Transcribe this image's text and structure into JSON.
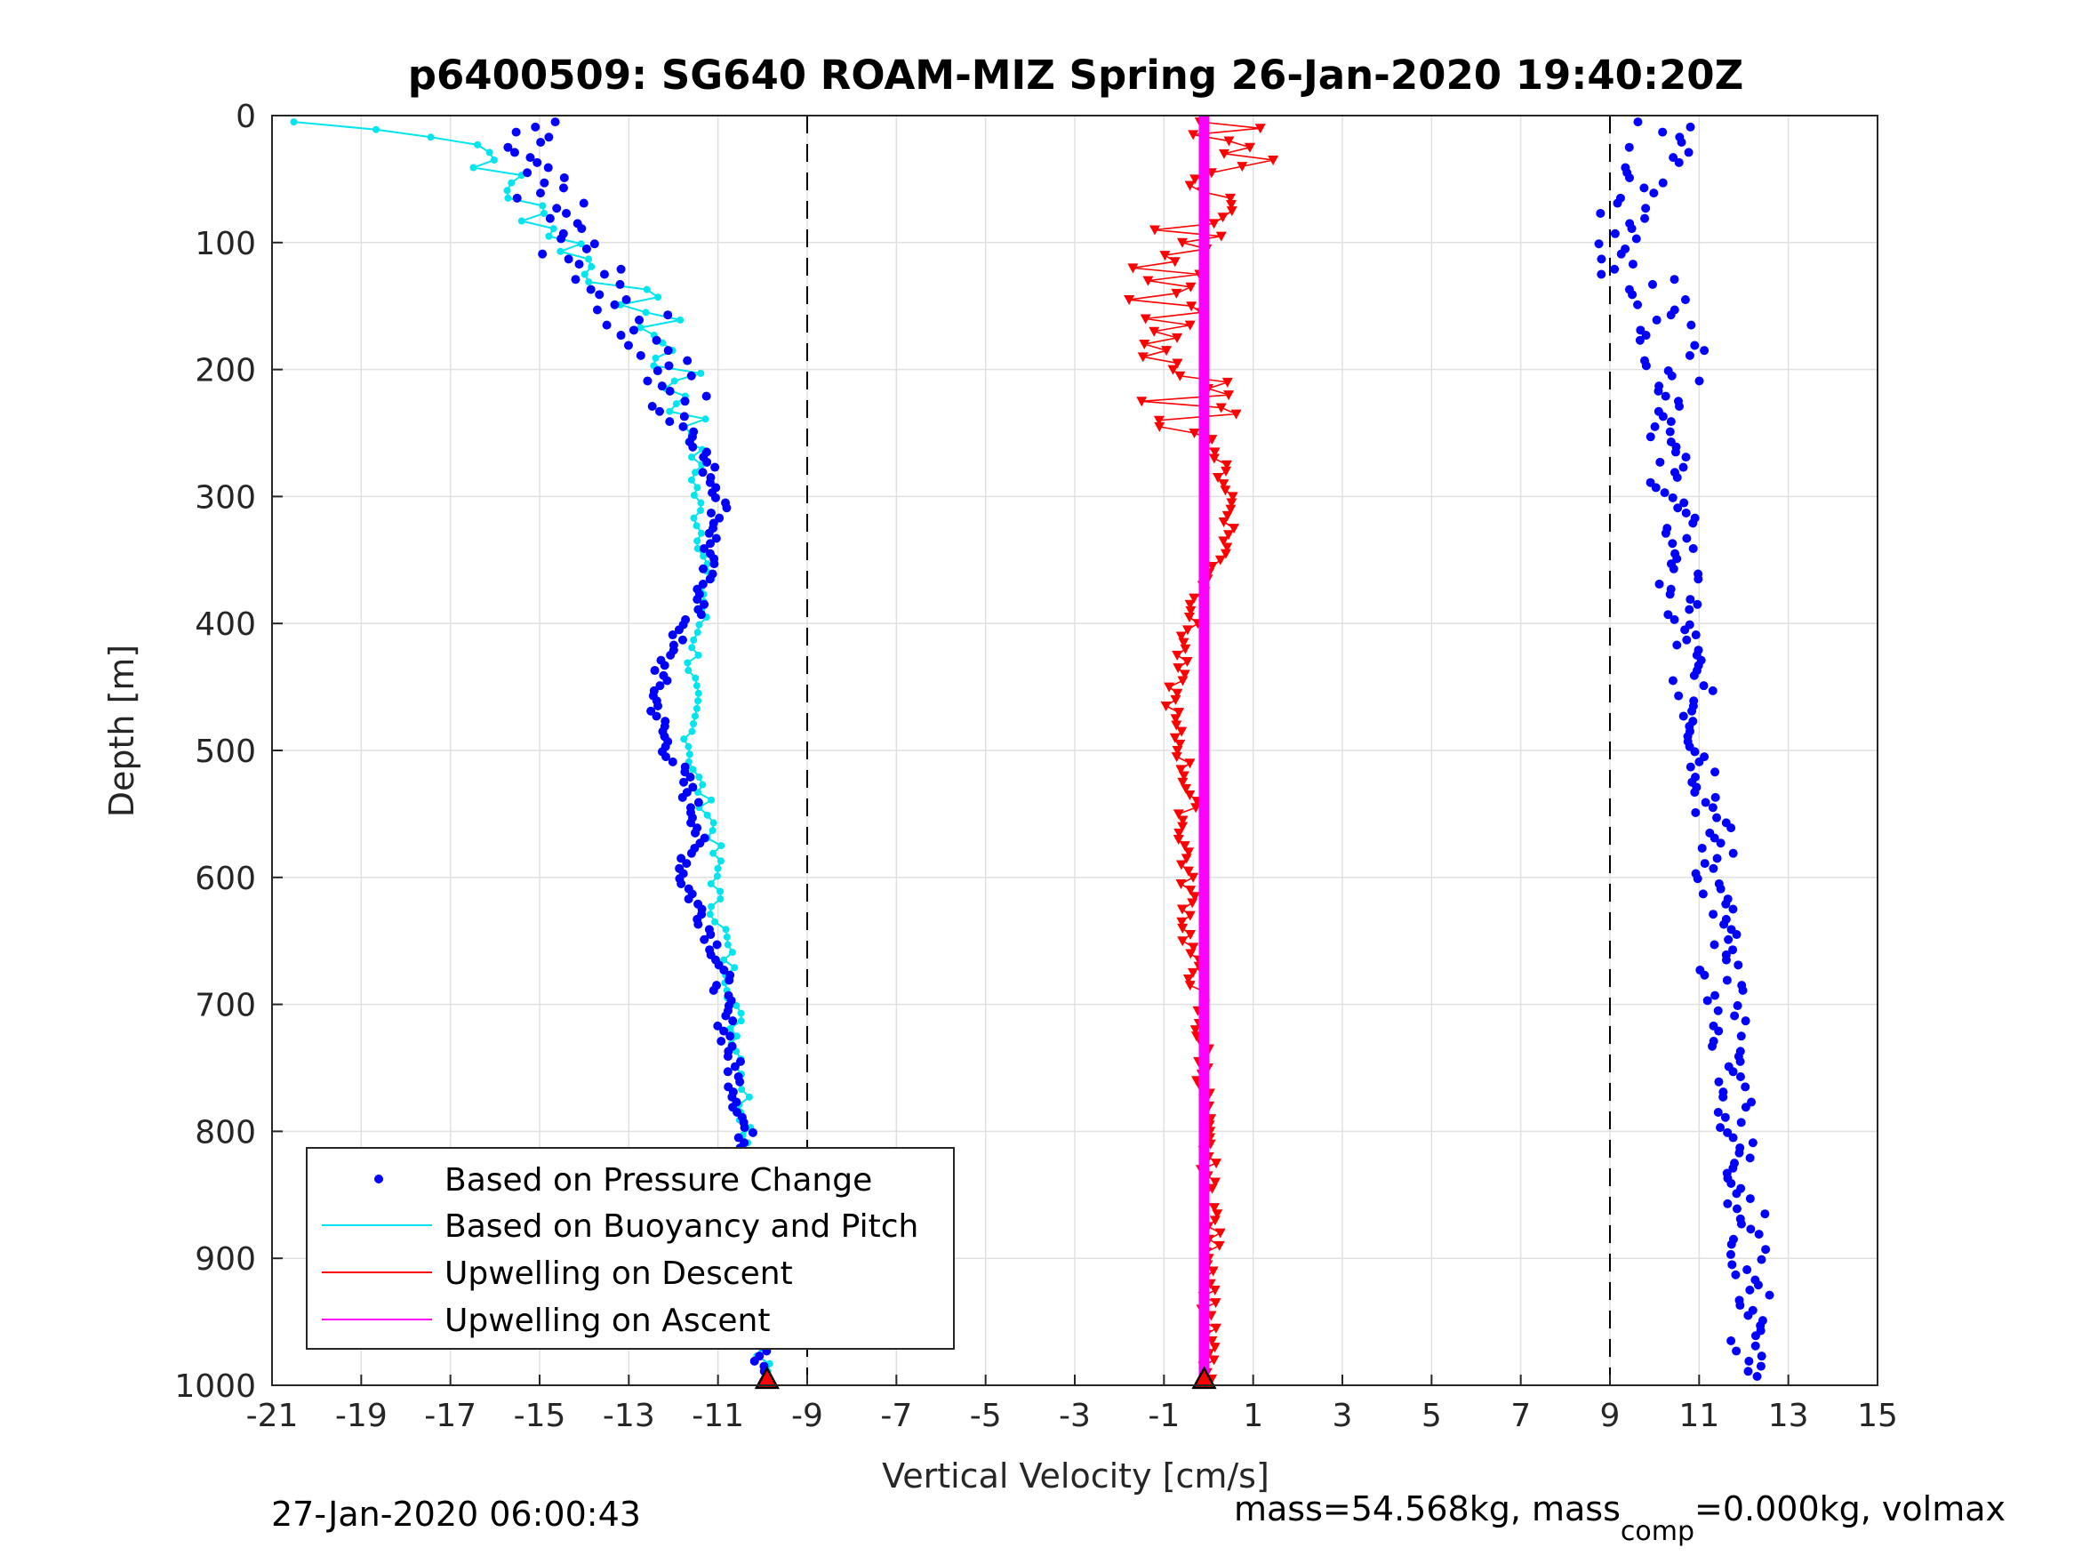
{
  "chart_data": {
    "type": "scatter",
    "title": "p6400509: SG640 ROAM-MIZ Spring 26-Jan-2020 19:40:20Z",
    "xlabel": "Vertical Velocity [cm/s]",
    "ylabel": "Depth [m]",
    "xlim": [
      -21,
      15
    ],
    "ylim": [
      1000,
      0
    ],
    "y_reversed": true,
    "xticks": [
      "-21",
      "-19",
      "-17",
      "-15",
      "-13",
      "-11",
      "-9",
      "-7",
      "-5",
      "-3",
      "-1",
      "1",
      "3",
      "5",
      "7",
      "9",
      "11",
      "13",
      "15"
    ],
    "yticks": [
      "0",
      "100",
      "200",
      "300",
      "400",
      "500",
      "600",
      "700",
      "800",
      "900",
      "1000"
    ],
    "grid": true,
    "dashed_lines_x": [
      -9,
      9
    ],
    "legend_position": "bottom-left",
    "footer_left": "27-Jan-2020 06:00:43",
    "footer_right": {
      "pre": "mass=54.568kg, mass",
      "sub": "comp",
      "post": "=0.000kg, volmax"
    },
    "legend": [
      {
        "label": "Based on Pressure Change",
        "color": "#0000ff",
        "style": "dot"
      },
      {
        "label": "Based on Buoyancy and Pitch",
        "color": "#00e5ee",
        "style": "line"
      },
      {
        "label": "Upwelling on Descent",
        "color": "#ff0000",
        "style": "line"
      },
      {
        "label": "Upwelling on Ascent",
        "color": "#ff00ff",
        "style": "line"
      }
    ],
    "series": [
      {
        "name": "Based on Pressure Change (descent)",
        "color": "#0000ff",
        "depth": [
          5,
          20,
          40,
          60,
          80,
          100,
          120,
          140,
          160,
          180,
          200,
          220,
          240,
          260,
          280,
          300,
          320,
          340,
          360,
          380,
          400,
          420,
          440,
          460,
          480,
          500,
          520,
          540,
          560,
          580,
          600,
          620,
          640,
          660,
          680,
          700,
          720,
          740,
          760,
          780,
          800,
          820,
          840,
          860,
          880,
          900,
          920,
          940,
          960,
          980,
          995
        ],
        "velocity": [
          -15.3,
          -15.6,
          -15.5,
          -14.9,
          -14.6,
          -14.4,
          -14.0,
          -13.2,
          -12.8,
          -12.6,
          -12.2,
          -11.9,
          -11.7,
          -11.4,
          -11.2,
          -10.9,
          -11.0,
          -11.2,
          -11.3,
          -11.3,
          -11.7,
          -12.1,
          -12.3,
          -12.4,
          -12.3,
          -12.1,
          -11.8,
          -11.6,
          -11.4,
          -11.6,
          -11.8,
          -11.5,
          -11.2,
          -11.0,
          -10.9,
          -10.9,
          -10.8,
          -10.7,
          -10.6,
          -10.5,
          -10.4,
          -10.3,
          -10.2,
          -10.2,
          -10.1,
          -10.1,
          -10.1,
          -10.0,
          -10.0,
          -10.0,
          -9.9
        ]
      },
      {
        "name": "Based on Buoyancy and Pitch (descent)",
        "color": "#00e5ee",
        "depth": [
          5,
          20,
          40,
          60,
          80,
          100,
          120,
          140,
          160,
          180,
          200,
          220,
          240,
          260,
          280,
          300,
          320,
          340,
          360,
          380,
          400,
          420,
          440,
          460,
          480,
          500,
          520,
          540,
          560,
          580,
          600,
          620,
          640,
          660,
          680,
          700,
          720,
          740,
          760,
          780,
          800,
          820,
          840,
          860,
          880,
          900,
          920,
          940,
          960,
          980,
          995
        ],
        "velocity": [
          -20.5,
          -16.1,
          -16.0,
          -15.6,
          -15.0,
          -14.3,
          -13.8,
          -13.0,
          -12.4,
          -12.3,
          -12.0,
          -11.8,
          -11.6,
          -11.5,
          -11.5,
          -11.5,
          -11.4,
          -11.3,
          -11.3,
          -11.3,
          -11.4,
          -11.5,
          -11.6,
          -11.6,
          -11.6,
          -11.6,
          -11.5,
          -11.3,
          -11.1,
          -11.1,
          -11.0,
          -11.1,
          -10.9,
          -10.8,
          -10.7,
          -10.6,
          -10.6,
          -10.5,
          -10.4,
          -10.4,
          -10.3,
          -10.3,
          -10.2,
          -10.2,
          -10.1,
          -10.1,
          -10.1,
          -10.0,
          -10.0,
          -10.0,
          -9.9
        ]
      },
      {
        "name": "Based on Pressure Change (ascent)",
        "color": "#0000ff",
        "depth": [
          5,
          20,
          40,
          60,
          80,
          100,
          120,
          140,
          160,
          180,
          200,
          220,
          240,
          260,
          280,
          300,
          320,
          340,
          360,
          380,
          400,
          420,
          440,
          460,
          480,
          500,
          520,
          540,
          560,
          580,
          600,
          620,
          640,
          660,
          680,
          700,
          720,
          740,
          760,
          780,
          800,
          820,
          840,
          860,
          880,
          900,
          920,
          940,
          960,
          980,
          995
        ],
        "velocity": [
          10.4,
          10.2,
          9.8,
          9.4,
          9.3,
          9.4,
          9.5,
          9.9,
          10.2,
          10.5,
          10.6,
          10.5,
          10.4,
          10.3,
          10.3,
          10.4,
          10.5,
          10.6,
          10.6,
          10.5,
          10.6,
          10.7,
          10.8,
          10.9,
          11.0,
          11.1,
          11.2,
          11.3,
          11.3,
          11.4,
          11.3,
          11.4,
          11.5,
          11.4,
          11.5,
          11.6,
          11.7,
          11.6,
          11.8,
          11.9,
          11.8,
          11.9,
          12.0,
          12.1,
          12.0,
          12.1,
          12.2,
          12.2,
          12.1,
          12.0,
          11.9
        ]
      },
      {
        "name": "Upwelling on Descent",
        "color": "#ff0000",
        "depth": [
          5,
          20,
          40,
          60,
          80,
          100,
          120,
          140,
          160,
          180,
          200,
          220,
          240,
          260,
          280,
          300,
          320,
          340,
          360,
          380,
          400,
          420,
          440,
          460,
          480,
          500,
          520,
          540,
          560,
          580,
          600,
          620,
          640,
          660,
          680,
          700,
          720,
          740,
          760,
          780,
          800,
          820,
          840,
          860,
          880,
          900,
          920,
          940,
          960,
          980,
          995
        ],
        "velocity": [
          0.5,
          0.8,
          0.6,
          0.3,
          -0.2,
          -0.6,
          -1.0,
          -0.8,
          -1.2,
          -0.9,
          -0.6,
          -0.5,
          -0.4,
          0.1,
          0.3,
          0.5,
          0.5,
          0.4,
          0.1,
          -0.2,
          -0.4,
          -0.6,
          -0.7,
          -0.8,
          -0.8,
          -0.6,
          -0.5,
          -0.4,
          -0.6,
          -0.5,
          -0.5,
          -0.4,
          -0.5,
          -0.4,
          -0.3,
          -0.2,
          -0.2,
          -0.1,
          -0.1,
          -0.1,
          -0.1,
          0.0,
          0.0,
          0.1,
          0.1,
          0.1,
          0.1,
          0.0,
          0.0,
          0.0,
          -0.1
        ]
      },
      {
        "name": "Upwelling on Ascent",
        "color": "#ff00ff",
        "depth": [
          0,
          1000
        ],
        "velocity": [
          -0.1,
          -0.1
        ]
      }
    ]
  }
}
